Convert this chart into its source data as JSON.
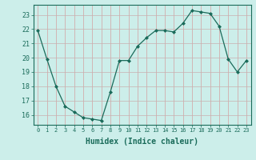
{
  "x": [
    0,
    1,
    2,
    3,
    4,
    5,
    6,
    7,
    8,
    9,
    10,
    11,
    12,
    13,
    14,
    15,
    16,
    17,
    18,
    19,
    20,
    21,
    22,
    23
  ],
  "y": [
    21.9,
    19.9,
    18.0,
    16.6,
    16.2,
    15.8,
    15.7,
    15.6,
    17.6,
    19.8,
    19.8,
    20.8,
    21.4,
    21.9,
    21.9,
    21.8,
    22.4,
    23.3,
    23.2,
    23.1,
    22.2,
    19.9,
    19.0,
    19.8
  ],
  "bg_color": "#cceeea",
  "grid_color_v": "#d4a0a0",
  "grid_color_h": "#c8b0b0",
  "line_color": "#1a6b5a",
  "marker_color": "#1a6b5a",
  "xlabel": "Humidex (Indice chaleur)",
  "ylim": [
    15.3,
    23.7
  ],
  "xlim": [
    -0.5,
    23.5
  ],
  "yticks": [
    16,
    17,
    18,
    19,
    20,
    21,
    22,
    23
  ],
  "xticks": [
    0,
    1,
    2,
    3,
    4,
    5,
    6,
    7,
    8,
    9,
    10,
    11,
    12,
    13,
    14,
    15,
    16,
    17,
    18,
    19,
    20,
    21,
    22,
    23
  ],
  "tick_color": "#1a6b5a",
  "spine_color": "#1a6b5a",
  "xlabel_fontsize": 7,
  "ytick_fontsize": 6,
  "xtick_fontsize": 5
}
